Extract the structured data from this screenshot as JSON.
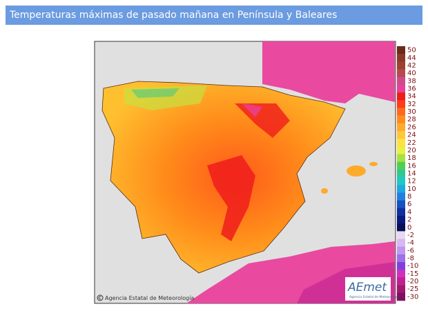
{
  "header": {
    "title": "Temperaturas máximas de pasado mañana en Península y Baleares"
  },
  "map": {
    "credit": "Agencia Estatal de Meteorología",
    "logo": {
      "name": "AEmet",
      "subtitle": "Agencia Estatal de Meteorología"
    }
  },
  "legend": {
    "items": [
      {
        "value": 50,
        "color": "#6b2a1a"
      },
      {
        "value": 44,
        "color": "#8b3a2a"
      },
      {
        "value": 42,
        "color": "#a0402f"
      },
      {
        "value": 40,
        "color": "#b54a50"
      },
      {
        "value": 38,
        "color": "#d04a8a"
      },
      {
        "value": 36,
        "color": "#e8409a"
      },
      {
        "value": 34,
        "color": "#f01c1c"
      },
      {
        "value": 32,
        "color": "#ff3b1a"
      },
      {
        "value": 30,
        "color": "#ff6a1a"
      },
      {
        "value": 28,
        "color": "#ff8c1a"
      },
      {
        "value": 26,
        "color": "#ffaa2a"
      },
      {
        "value": 24,
        "color": "#ffc83a"
      },
      {
        "value": 22,
        "color": "#ffe040"
      },
      {
        "value": 20,
        "color": "#e8f040"
      },
      {
        "value": 18,
        "color": "#a8e040"
      },
      {
        "value": 16,
        "color": "#50d050"
      },
      {
        "value": 14,
        "color": "#30c890"
      },
      {
        "value": 12,
        "color": "#20c8c8"
      },
      {
        "value": 10,
        "color": "#20a8e0"
      },
      {
        "value": 8,
        "color": "#2080e0"
      },
      {
        "value": 6,
        "color": "#1850c0"
      },
      {
        "value": 4,
        "color": "#1030a0"
      },
      {
        "value": 2,
        "color": "#0a1a80"
      },
      {
        "value": 0,
        "color": "#08105a"
      },
      {
        "value": -2,
        "color": "#e8d8f0"
      },
      {
        "value": -4,
        "color": "#d8b8f0"
      },
      {
        "value": -6,
        "color": "#c098f0"
      },
      {
        "value": -8,
        "color": "#a070e8"
      },
      {
        "value": -10,
        "color": "#8040e0"
      },
      {
        "value": -15,
        "color": "#d030c0"
      },
      {
        "value": -20,
        "color": "#c02090"
      },
      {
        "value": -25,
        "color": "#a01870"
      },
      {
        "value": -30,
        "color": "#801060"
      }
    ]
  }
}
